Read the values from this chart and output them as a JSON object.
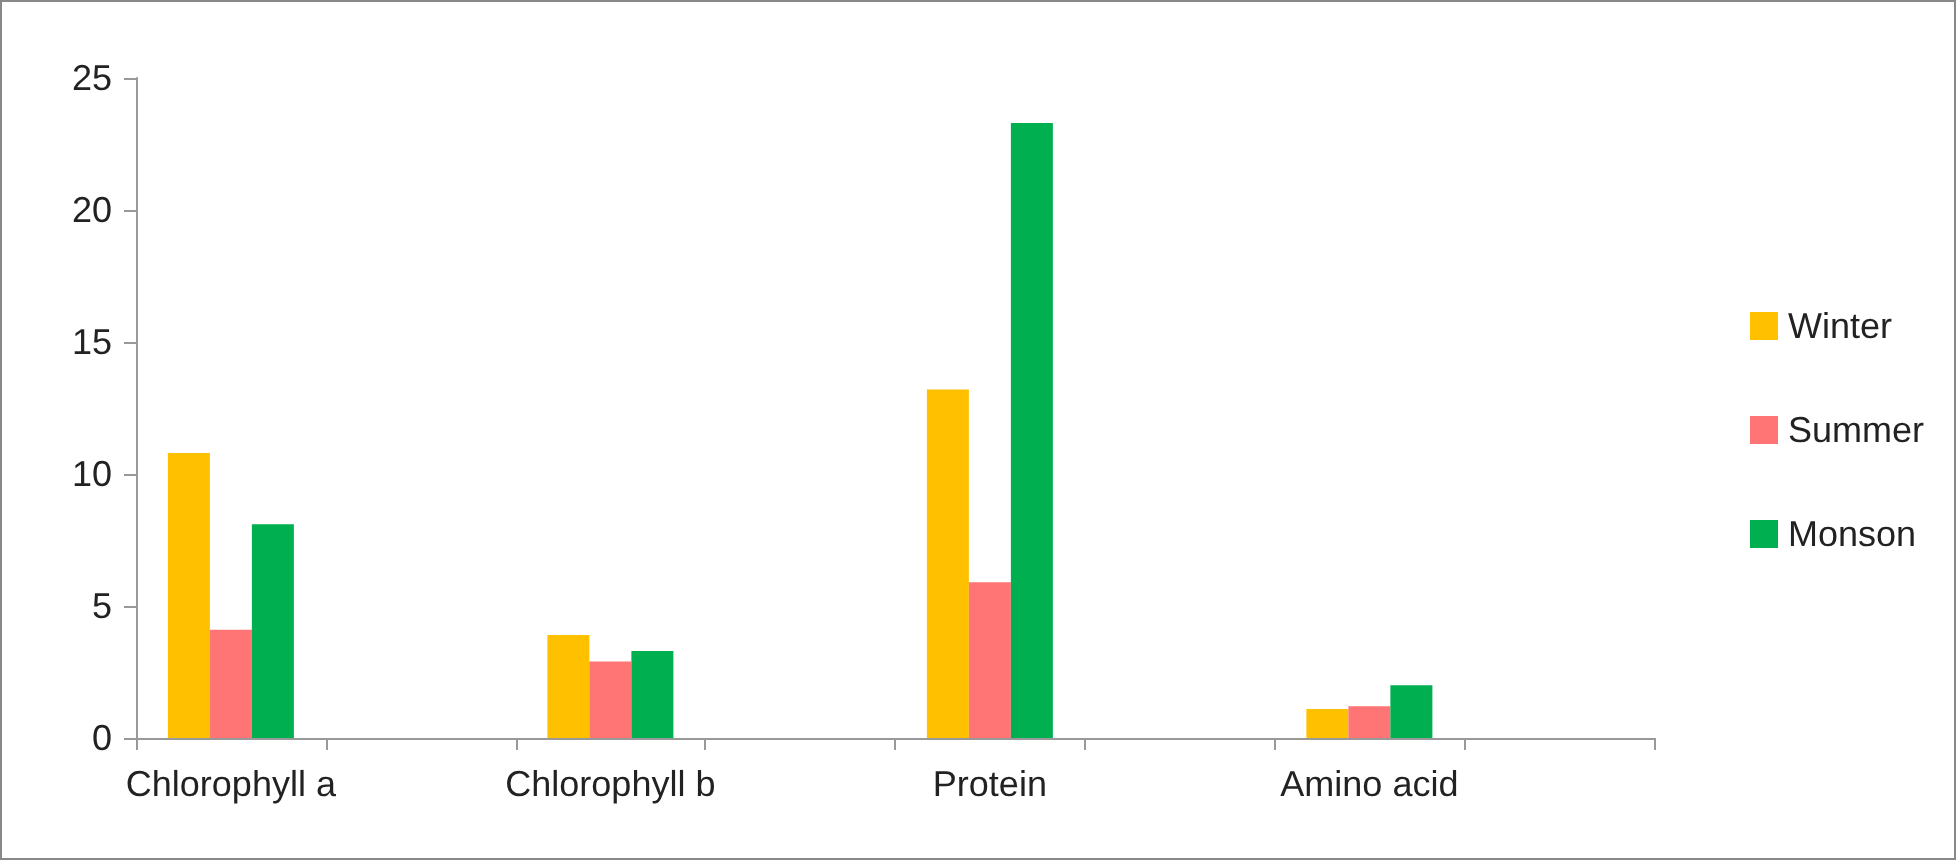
{
  "chart_data": {
    "type": "bar",
    "categories": [
      "Chlorophyll a",
      null,
      "Chlorophyll b",
      null,
      "Protein",
      null,
      "Amino acid",
      null
    ],
    "series": [
      {
        "name": "Winter",
        "color": "#ffc000",
        "values": [
          10.8,
          null,
          3.9,
          null,
          13.2,
          null,
          1.1,
          null
        ]
      },
      {
        "name": "Summer",
        "color": "#ff7575",
        "values": [
          4.1,
          null,
          2.9,
          null,
          5.9,
          null,
          1.2,
          null
        ]
      },
      {
        "name": "Monson",
        "color": "#00b050",
        "values": [
          8.1,
          null,
          3.3,
          null,
          23.3,
          null,
          2.0,
          null
        ]
      }
    ],
    "ylim": [
      0,
      25
    ],
    "yticks": [
      0,
      5,
      10,
      15,
      20,
      25
    ],
    "grid": false,
    "legend": "right"
  }
}
